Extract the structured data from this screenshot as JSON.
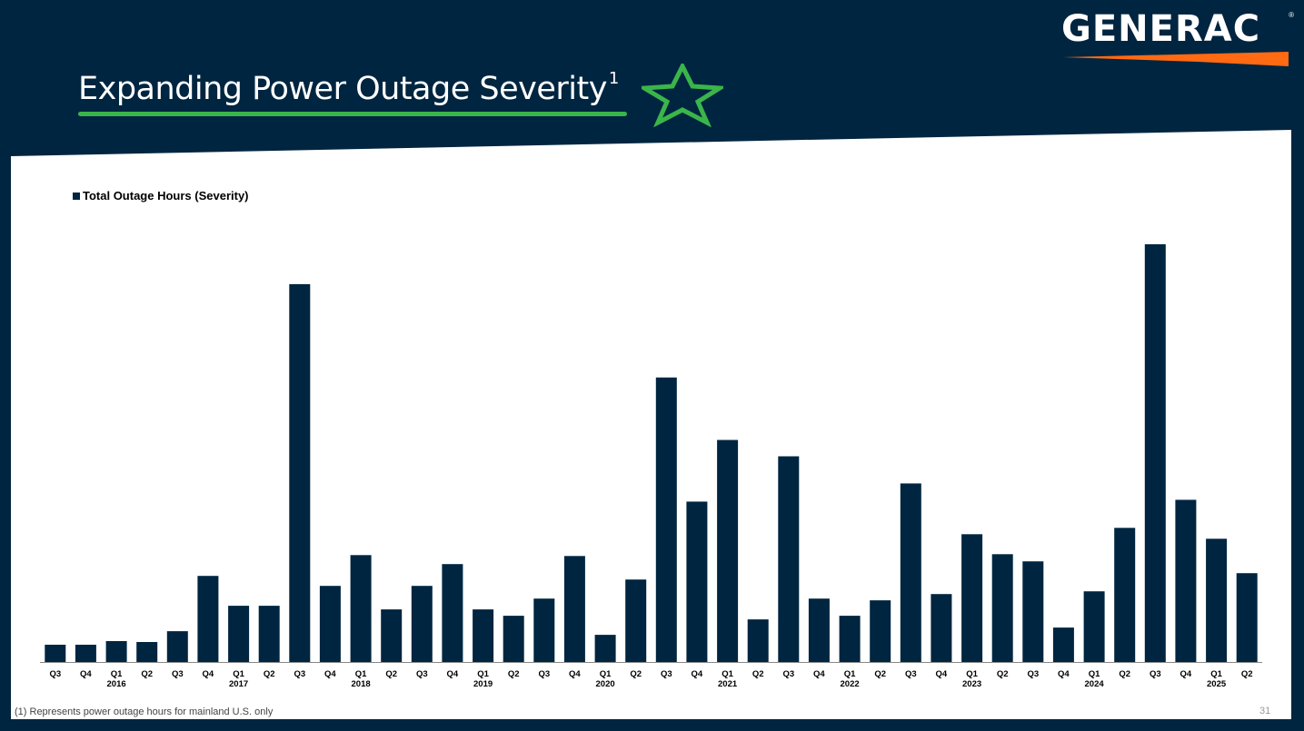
{
  "title": "Expanding Power Outage Severity",
  "title_sup": "1",
  "logo": {
    "text": "GENERAC",
    "reg_mark": "®",
    "swoosh_color": "#ff6a13"
  },
  "colors": {
    "background": "#002540",
    "panel": "#ffffff",
    "bar": "#002540",
    "accent_green": "#3ab54a"
  },
  "icons": {
    "title_star": "star-outline-icon"
  },
  "footnote": "(1) Represents power outage hours for mainland U.S. only",
  "page_number": "31",
  "chart_data": {
    "type": "bar",
    "series": [
      {
        "name": "Total Outage Hours (Severity)",
        "values": [
          19,
          19,
          23,
          22,
          34,
          95,
          62,
          62,
          417,
          84,
          118,
          58,
          84,
          108,
          58,
          51,
          70,
          117,
          30,
          91,
          314,
          177,
          245,
          47,
          227,
          70,
          51,
          68,
          197,
          75,
          141,
          119,
          111,
          38,
          78,
          148,
          461,
          179,
          136,
          98
        ]
      }
    ],
    "categories": [
      "Q3",
      "Q4",
      "Q1",
      "Q2",
      "Q3",
      "Q4",
      "Q1",
      "Q2",
      "Q3",
      "Q4",
      "Q1",
      "Q2",
      "Q3",
      "Q4",
      "Q1",
      "Q2",
      "Q3",
      "Q4",
      "Q1",
      "Q2",
      "Q3",
      "Q4",
      "Q1",
      "Q2",
      "Q3",
      "Q4",
      "Q1",
      "Q2",
      "Q3",
      "Q4",
      "Q1",
      "Q2",
      "Q3",
      "Q4",
      "Q1",
      "Q2",
      "Q3",
      "Q4",
      "Q1",
      "Q2"
    ],
    "year_labels": [
      {
        "category_index": 2,
        "year": "2016"
      },
      {
        "category_index": 6,
        "year": "2017"
      },
      {
        "category_index": 10,
        "year": "2018"
      },
      {
        "category_index": 14,
        "year": "2019"
      },
      {
        "category_index": 18,
        "year": "2020"
      },
      {
        "category_index": 22,
        "year": "2021"
      },
      {
        "category_index": 26,
        "year": "2022"
      },
      {
        "category_index": 30,
        "year": "2023"
      },
      {
        "category_index": 34,
        "year": "2024"
      },
      {
        "category_index": 38,
        "year": "2025"
      }
    ],
    "ylim": [
      0,
      500
    ],
    "y_axis_shown": false,
    "grid": false,
    "legend_position": "top-left"
  }
}
